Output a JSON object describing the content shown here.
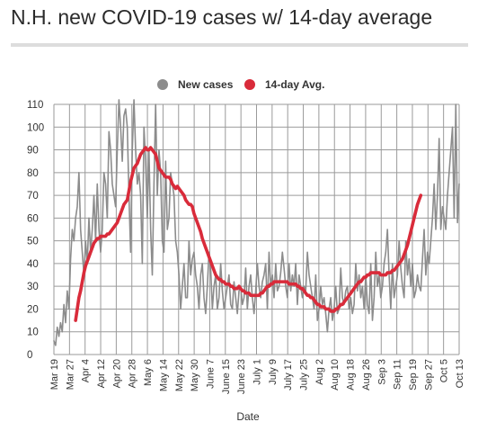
{
  "chart_data": {
    "type": "line",
    "title": "N.H. new COVID-19 cases w/ 14-day average",
    "xlabel": "Date",
    "ylabel": "",
    "ylim": [
      0,
      110
    ],
    "yticks": [
      0,
      10,
      20,
      30,
      40,
      50,
      60,
      70,
      80,
      90,
      100,
      110
    ],
    "x_start": "2020-03-19",
    "x_end": "2020-10-13",
    "x_ticks": [
      "Mar 19",
      "Mar 27",
      "Apr 4",
      "Apr 12",
      "Apr 20",
      "Apr 28",
      "May 6",
      "May 14",
      "May 22",
      "May 30",
      "June 7",
      "June 15",
      "June 23",
      "July 1",
      "July 9",
      "July 17",
      "July 25",
      "Aug 2",
      "Aug 10",
      "Aug 18",
      "Aug 26",
      "Sep 3",
      "Sep 11",
      "Sep 19",
      "Sep 27",
      "Oct 5",
      "Oct 13"
    ],
    "grid": true,
    "legend_position": "top-center",
    "series": [
      {
        "name": "New cases",
        "color": "#8c8c8c",
        "values": [
          6,
          4,
          12,
          8,
          14,
          10,
          22,
          14,
          28,
          20,
          42,
          55,
          50,
          60,
          65,
          80,
          55,
          45,
          35,
          50,
          40,
          60,
          45,
          55,
          70,
          50,
          75,
          55,
          45,
          55,
          80,
          75,
          60,
          98,
          90,
          75,
          70,
          65,
          90,
          115,
          100,
          85,
          105,
          108,
          100,
          70,
          45,
          90,
          115,
          90,
          75,
          80,
          70,
          40,
          100,
          85,
          60,
          90,
          55,
          35,
          75,
          110,
          70,
          90,
          80,
          50,
          45,
          85,
          55,
          60,
          80,
          75,
          70,
          50,
          45,
          35,
          20,
          30,
          40,
          25,
          25,
          50,
          35,
          42,
          45,
          35,
          30,
          20,
          35,
          40,
          25,
          18,
          30,
          45,
          38,
          20,
          30,
          35,
          20,
          25,
          40,
          28,
          20,
          25,
          30,
          35,
          22,
          20,
          32,
          25,
          18,
          28,
          30,
          22,
          25,
          38,
          20,
          30,
          35,
          25,
          18,
          28,
          40,
          30,
          25,
          32,
          35,
          40,
          20,
          45,
          30,
          35,
          25,
          40,
          28,
          30,
          36,
          45,
          38,
          30,
          25,
          40,
          28,
          35,
          30,
          40,
          22,
          35,
          30,
          25,
          30,
          28,
          45,
          35,
          30,
          25,
          20,
          35,
          15,
          20,
          30,
          22,
          25,
          18,
          10,
          20,
          25,
          15,
          20,
          30,
          18,
          20,
          38,
          25,
          22,
          28,
          30,
          20,
          25,
          18,
          22,
          40,
          28,
          35,
          25,
          30,
          20,
          35,
          22,
          18,
          40,
          15,
          25,
          45,
          30,
          35,
          25,
          30,
          40,
          45,
          55,
          35,
          20,
          40,
          25,
          30,
          35,
          50,
          38,
          30,
          25,
          50,
          35,
          42,
          30,
          40,
          25,
          28,
          35,
          30,
          28,
          42,
          55,
          35,
          45,
          40,
          50,
          60,
          75,
          55,
          70,
          95,
          55,
          65,
          60,
          55,
          70,
          80,
          90,
          100,
          60,
          110,
          58,
          75
        ]
      },
      {
        "name": "14-day Avg.",
        "color": "#d92b3a",
        "values": [
          null,
          null,
          null,
          null,
          null,
          null,
          null,
          null,
          null,
          null,
          null,
          null,
          null,
          15,
          20,
          25,
          28,
          32,
          36,
          39,
          41,
          43,
          45,
          47,
          49,
          50,
          51,
          51,
          52,
          52,
          52,
          52,
          53,
          53,
          54,
          55,
          56,
          57,
          58,
          60,
          62,
          64,
          66,
          67,
          68,
          72,
          76,
          79,
          82,
          83,
          84,
          86,
          88,
          89,
          90,
          91,
          90,
          90,
          91,
          90,
          89,
          88,
          85,
          82,
          81,
          80,
          79,
          78,
          78,
          78,
          77,
          75,
          74,
          73,
          74,
          73,
          72,
          71,
          70,
          68,
          67,
          66,
          66,
          65,
          62,
          60,
          58,
          56,
          54,
          51,
          49,
          47,
          45,
          43,
          41,
          39,
          37,
          35,
          34,
          33,
          33,
          32,
          32,
          31,
          31,
          31,
          30,
          30,
          29,
          29,
          29,
          30,
          29,
          28,
          28,
          27,
          27,
          27,
          26,
          26,
          26,
          26,
          26,
          26,
          27,
          27,
          28,
          29,
          30,
          30,
          31,
          31,
          32,
          32,
          32,
          32,
          32,
          32,
          32,
          32,
          32,
          31,
          31,
          31,
          31,
          31,
          30,
          30,
          29,
          29,
          28,
          27,
          26,
          26,
          25,
          25,
          24,
          23,
          22,
          22,
          21,
          21,
          21,
          20,
          20,
          20,
          19,
          19,
          19,
          20,
          20,
          21,
          22,
          22,
          23,
          24,
          25,
          26,
          27,
          28,
          29,
          30,
          31,
          32,
          32,
          33,
          34,
          34,
          35,
          35,
          36,
          36,
          36,
          36,
          36,
          36,
          35,
          35,
          35,
          35,
          36,
          36,
          36,
          37,
          37,
          38,
          39,
          40,
          41,
          42,
          44,
          46,
          48,
          51,
          54,
          57,
          60,
          63,
          66,
          68,
          70
        ]
      }
    ]
  }
}
